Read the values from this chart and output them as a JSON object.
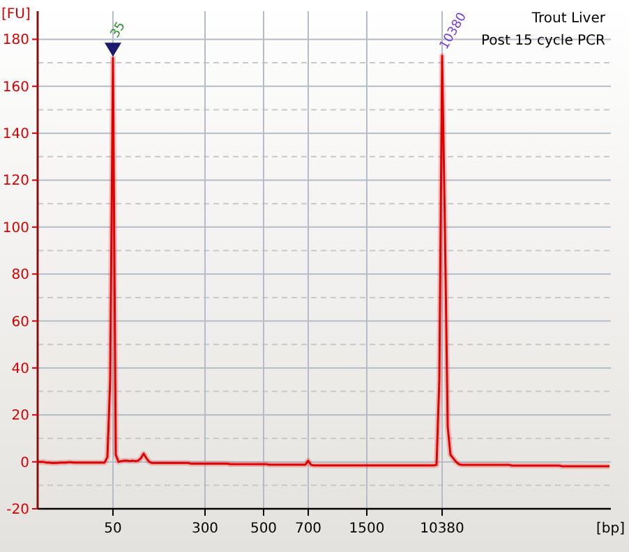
{
  "chart_data": {
    "type": "line",
    "title": "Trout Liver",
    "subtitle": "Post 15 cycle PCR",
    "xlabel": "[bp]",
    "ylabel": "[FU]",
    "categories": [
      null,
      null,
      null,
      null,
      null,
      null,
      null,
      null,
      null,
      null,
      null,
      null,
      null,
      null,
      null,
      null,
      null,
      null,
      null,
      null,
      null,
      null,
      null,
      null,
      null,
      null,
      null,
      "50",
      null,
      null,
      null,
      null,
      null,
      null,
      null,
      null,
      null,
      null,
      null,
      null,
      null,
      null,
      null,
      null,
      null,
      null,
      null,
      null,
      null,
      null,
      null,
      null,
      null,
      null,
      null,
      null,
      null,
      null,
      null,
      null,
      "300",
      null,
      null,
      null,
      null,
      null,
      null,
      null,
      null,
      null,
      null,
      null,
      null,
      null,
      null,
      null,
      null,
      null,
      null,
      null,
      null,
      "500",
      null,
      null,
      null,
      null,
      null,
      null,
      null,
      null,
      null,
      null,
      null,
      null,
      null,
      null,
      null,
      "700",
      null,
      null,
      null,
      null,
      null,
      null,
      null,
      null,
      null,
      null,
      null,
      null,
      null,
      null,
      null,
      null,
      null,
      null,
      null,
      null,
      "1500",
      null,
      null,
      null,
      null,
      null,
      null,
      null,
      null,
      null,
      null,
      null,
      null,
      null,
      null,
      null,
      null,
      null,
      null,
      null,
      null,
      null,
      null,
      null,
      null,
      null,
      null,
      "10380",
      null,
      null,
      null,
      null,
      null,
      null,
      null,
      null,
      null,
      null,
      null,
      null,
      null,
      null,
      null,
      null,
      null,
      null,
      null,
      null,
      null,
      null,
      null,
      null,
      null,
      null,
      null,
      null,
      null,
      null,
      null,
      null,
      null,
      null,
      null,
      null,
      null,
      null,
      null,
      null,
      null,
      null,
      null,
      null,
      null,
      null,
      null,
      null,
      null,
      null,
      null,
      null,
      null,
      null,
      null,
      null,
      null,
      null,
      null,
      null
    ],
    "ylim": [
      -20,
      192
    ],
    "yticks": [
      -20,
      0,
      20,
      40,
      60,
      80,
      100,
      120,
      140,
      160,
      180
    ],
    "grid": true,
    "marker": "none",
    "line_style": "solid",
    "annotations": [
      {
        "text": "35",
        "x": "50",
        "y": 172
      },
      {
        "text": "10380",
        "x": "10380",
        "y": 173
      }
    ],
    "series": [
      {
        "color": "#e00000",
        "values": [
          0,
          0,
          0,
          -0.3,
          -0.3,
          -0.5,
          -0.5,
          -0.5,
          -0.3,
          -0.3,
          -0.3,
          -0.2,
          -0.2,
          -0.3,
          -0.3,
          -0.3,
          -0.3,
          -0.3,
          -0.3,
          -0.3,
          -0.3,
          -0.3,
          -0.3,
          -0.3,
          -0.3,
          2,
          35,
          172,
          3,
          0,
          0.3,
          0.5,
          0.5,
          0.3,
          0.5,
          0.3,
          0.5,
          1.5,
          3.5,
          1.5,
          0,
          -0.5,
          -0.5,
          -0.5,
          -0.5,
          -0.5,
          -0.5,
          -0.5,
          -0.5,
          -0.5,
          -0.5,
          -0.5,
          -0.5,
          -0.5,
          -0.5,
          -0.8,
          -0.8,
          -0.8,
          -0.8,
          -0.8,
          -0.8,
          -0.8,
          -0.8,
          -0.8,
          -0.8,
          -0.8,
          -0.8,
          -0.8,
          -0.8,
          -1,
          -1,
          -1,
          -1,
          -1,
          -1,
          -1,
          -1,
          -1,
          -1,
          -1,
          -1,
          -1,
          -1,
          -1.2,
          -1.2,
          -1.2,
          -1.2,
          -1.2,
          -1.2,
          -1.2,
          -1.2,
          -1.2,
          -1.2,
          -1.2,
          -1.2,
          -1.2,
          -1.2,
          0.5,
          -1.3,
          -1.5,
          -1.5,
          -1.5,
          -1.5,
          -1.5,
          -1.5,
          -1.5,
          -1.5,
          -1.5,
          -1.5,
          -1.5,
          -1.5,
          -1.5,
          -1.5,
          -1.5,
          -1.5,
          -1.5,
          -1.5,
          -1.5,
          -1.5,
          -1.5,
          -1.5,
          -1.5,
          -1.5,
          -1.5,
          -1.5,
          -1.5,
          -1.5,
          -1.5,
          -1.5,
          -1.5,
          -1.5,
          -1.5,
          -1.5,
          -1.5,
          -1.5,
          -1.5,
          -1.5,
          -1.5,
          -1.5,
          -1.5,
          -1.5,
          -1.5,
          -1.5,
          -1.3,
          35,
          173,
          100,
          15,
          3,
          1.5,
          0,
          -1,
          -1.3,
          -1.3,
          -1.3,
          -1.3,
          -1.3,
          -1.3,
          -1.3,
          -1.3,
          -1.3,
          -1.3,
          -1.3,
          -1.3,
          -1.3,
          -1.3,
          -1.3,
          -1.3,
          -1.3,
          -1.3,
          -1.6,
          -1.6,
          -1.6,
          -1.6,
          -1.6,
          -1.6,
          -1.6,
          -1.6,
          -1.6,
          -1.6,
          -1.6,
          -1.6,
          -1.6,
          -1.6,
          -1.6,
          -1.6,
          -1.6,
          -1.6,
          -1.9,
          -1.9,
          -1.9,
          -1.9,
          -1.9,
          -1.9,
          -1.9,
          -1.9,
          -1.9,
          -1.9,
          -1.9,
          -1.9,
          -1.9,
          -1.9,
          -1.9,
          -1.9,
          -1.9,
          -1.9
        ]
      }
    ]
  }
}
